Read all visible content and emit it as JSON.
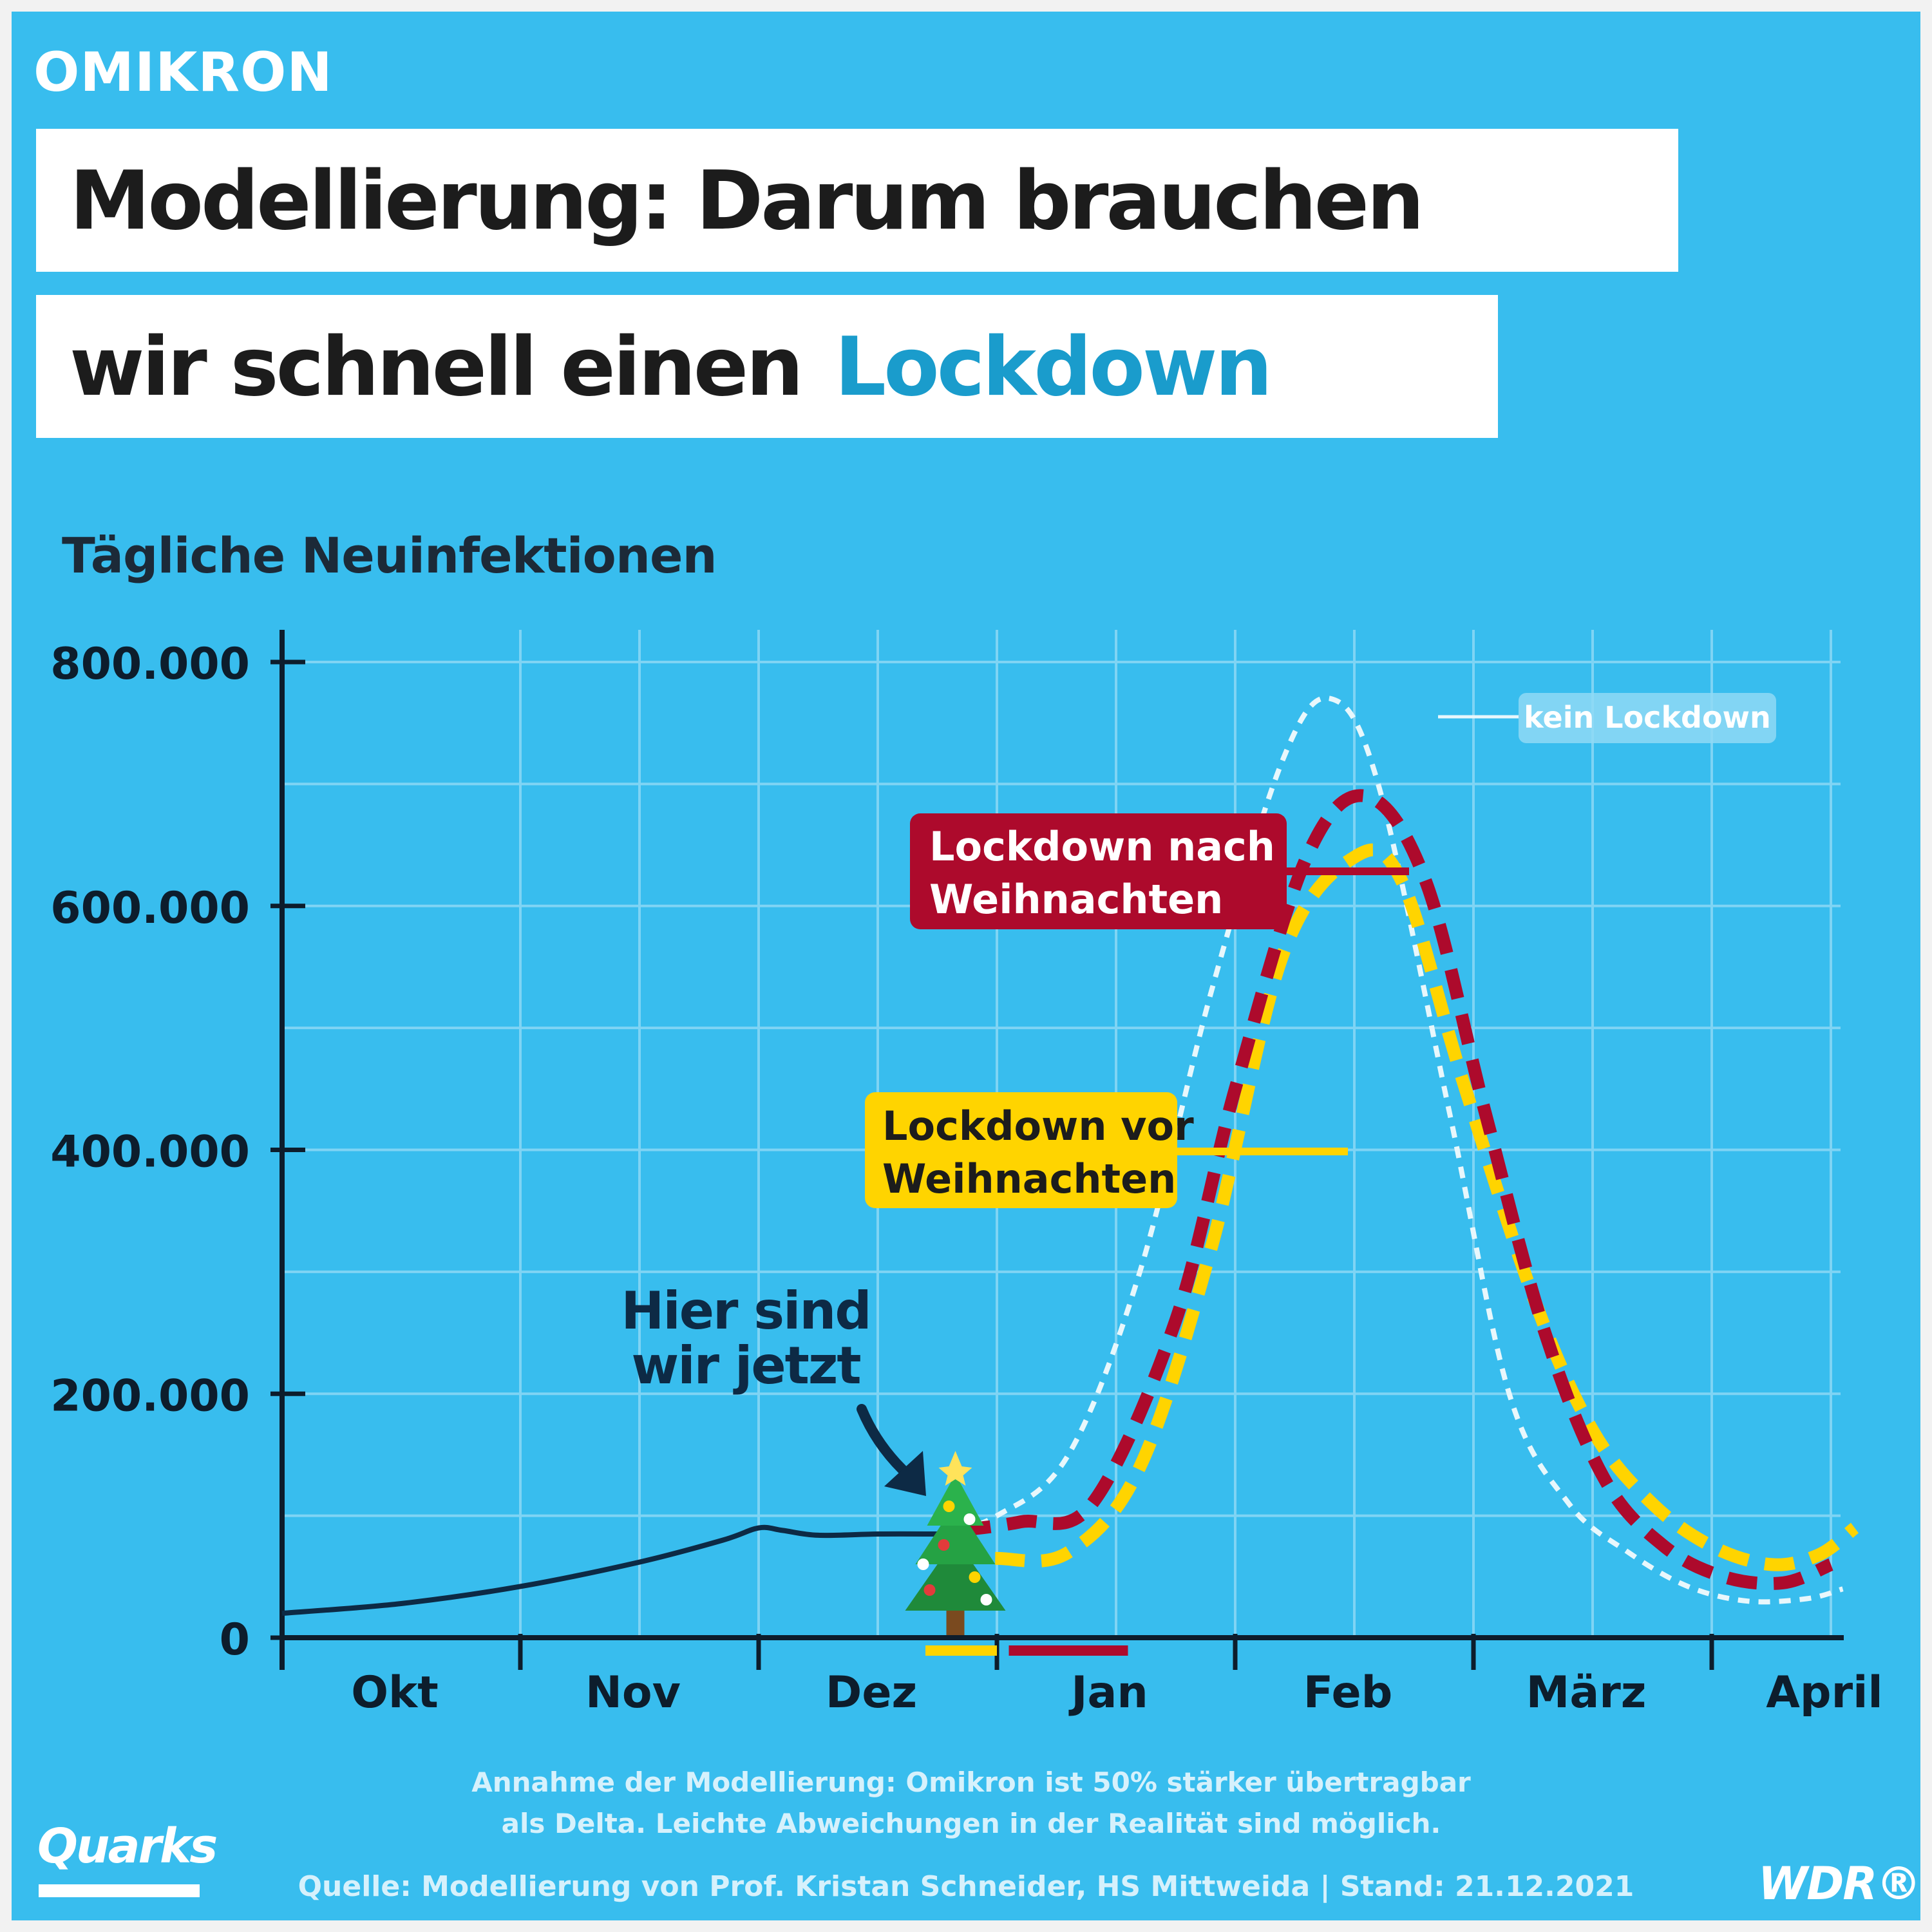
{
  "kicker": "OMIKRON",
  "title": {
    "line1": "Modellierung: Darum brauchen",
    "line2": "wir schnell einen",
    "accent": "Lockdown"
  },
  "footer": {
    "note_line1": "Annahme der Modellierung: Omikron ist 50% stärker übertragbar",
    "note_line2": "als Delta. Leichte Abweichungen in der Realität sind möglich.",
    "source": "Quelle: Modellierung von Prof. Kristan Schneider, HS Mittweida | Stand: 21.12.2021"
  },
  "logos": {
    "left": "Quarks",
    "right": "WDR®"
  },
  "colors": {
    "background": "#38bdee",
    "accent": "#1a9ccc",
    "observed": "#0d2a45",
    "kein_lockdown": "#e8f7fc",
    "nach_weihnachten": "#ad0a2c",
    "vor_weihnachten": "#ffd400",
    "grid": "#7fd4f4"
  },
  "chart_data": {
    "type": "line",
    "title": "Tägliche Neuinfektionen",
    "x_unit": "months",
    "x_categories": [
      "Okt",
      "Nov",
      "Dez",
      "Jan",
      "Feb",
      "März",
      "April"
    ],
    "y_ticks": [
      "0",
      "200.000",
      "400.000",
      "600.000",
      "800.000"
    ],
    "y_tick_values": [
      0,
      200000,
      400000,
      600000,
      800000
    ],
    "ylim": [
      0,
      800000
    ],
    "grid": true,
    "annotation": {
      "text_line1": "Hier sind",
      "text_line2": "wir jetzt",
      "icon": "christmas-tree-icon",
      "x": 2.75,
      "y": 75000
    },
    "series": [
      {
        "name": "",
        "style": "solid",
        "points": [
          [
            0,
            20000
          ],
          [
            0.5,
            28000
          ],
          [
            1,
            42000
          ],
          [
            1.5,
            62000
          ],
          [
            1.85,
            80000
          ],
          [
            2.0,
            90000
          ],
          [
            2.1,
            88000
          ],
          [
            2.25,
            84000
          ],
          [
            2.5,
            85000
          ],
          [
            2.75,
            85000
          ]
        ]
      },
      {
        "name": "kein Lockdown",
        "style": "dotted",
        "points": [
          [
            2.75,
            85000
          ],
          [
            3.0,
            100000
          ],
          [
            3.3,
            150000
          ],
          [
            3.6,
            300000
          ],
          [
            3.9,
            530000
          ],
          [
            4.2,
            720000
          ],
          [
            4.4,
            770000
          ],
          [
            4.6,
            700000
          ],
          [
            4.9,
            430000
          ],
          [
            5.15,
            200000
          ],
          [
            5.4,
            110000
          ],
          [
            5.65,
            70000
          ],
          [
            5.9,
            42000
          ],
          [
            6.15,
            30000
          ],
          [
            6.4,
            32000
          ],
          [
            6.55,
            40000
          ]
        ]
      },
      {
        "name": "Lockdown nach Weihnachten",
        "style": "dashed",
        "points": [
          [
            2.85,
            88000
          ],
          [
            3.1,
            95000
          ],
          [
            3.4,
            110000
          ],
          [
            3.75,
            260000
          ],
          [
            4.0,
            450000
          ],
          [
            4.3,
            640000
          ],
          [
            4.55,
            690000
          ],
          [
            4.8,
            620000
          ],
          [
            5.05,
            430000
          ],
          [
            5.3,
            250000
          ],
          [
            5.55,
            130000
          ],
          [
            5.8,
            75000
          ],
          [
            6.05,
            50000
          ],
          [
            6.3,
            45000
          ],
          [
            6.5,
            60000
          ]
        ]
      },
      {
        "name": "Lockdown vor Weihnachten",
        "style": "dashed",
        "points": [
          [
            2.8,
            70000
          ],
          [
            3.0,
            65000
          ],
          [
            3.3,
            70000
          ],
          [
            3.6,
            140000
          ],
          [
            3.9,
            320000
          ],
          [
            4.2,
            560000
          ],
          [
            4.5,
            640000
          ],
          [
            4.7,
            620000
          ],
          [
            4.95,
            460000
          ],
          [
            5.25,
            280000
          ],
          [
            5.5,
            170000
          ],
          [
            5.75,
            110000
          ],
          [
            6.0,
            75000
          ],
          [
            6.25,
            60000
          ],
          [
            6.45,
            68000
          ],
          [
            6.6,
            90000
          ]
        ]
      }
    ],
    "labels": [
      {
        "series": 1,
        "line1": "kein Lockdown",
        "line2": ""
      },
      {
        "series": 2,
        "line1": "Lockdown nach",
        "line2": "Weihnachten"
      },
      {
        "series": 3,
        "line1": "Lockdown vor",
        "line2": "Weihnachten"
      }
    ],
    "lockdown_markers": [
      {
        "series": 3,
        "x_from": 2.7,
        "x_to": 3.0
      },
      {
        "series": 2,
        "x_from": 3.05,
        "x_to": 3.55
      }
    ]
  }
}
